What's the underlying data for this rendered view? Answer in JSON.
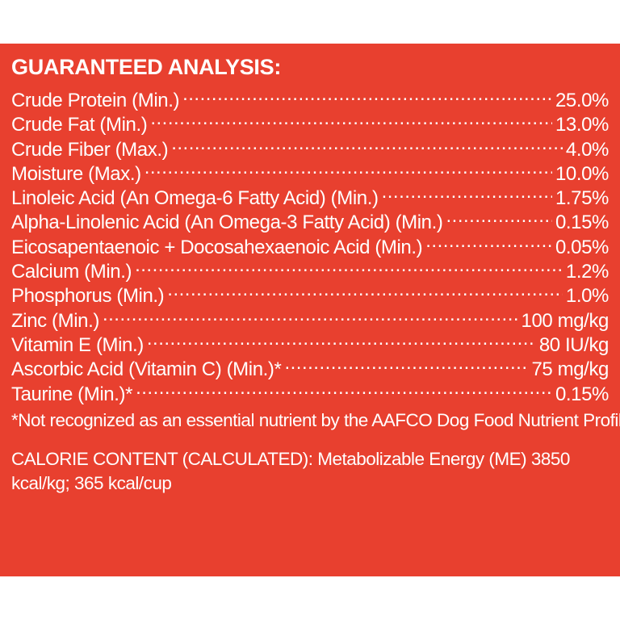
{
  "panel": {
    "heading": "GUARANTEED ANALYSIS:",
    "rows": [
      {
        "label": "Crude Protein (Min.)",
        "value": "25.0%"
      },
      {
        "label": "Crude Fat (Min.)",
        "value": "13.0%"
      },
      {
        "label": "Crude Fiber (Max.)",
        "value": "4.0%"
      },
      {
        "label": "Moisture (Max.)",
        "value": "10.0%"
      },
      {
        "label": "Linoleic Acid (An Omega-6 Fatty Acid) (Min.)",
        "value": "1.75%"
      },
      {
        "label": "Alpha-Linolenic Acid (An Omega-3 Fatty Acid) (Min.)",
        "value": "0.15%"
      },
      {
        "label": "Eicosapentaenoic + Docosahexaenoic Acid (Min.)",
        "value": "0.05%"
      },
      {
        "label": "Calcium (Min.)",
        "value": "1.2%"
      },
      {
        "label": "Phosphorus (Min.)",
        "value": "1.0%"
      },
      {
        "label": "Zinc (Min.)",
        "value": "100 mg/kg"
      },
      {
        "label": "Vitamin E (Min.)",
        "value": "80 IU/kg"
      },
      {
        "label": "Ascorbic Acid (Vitamin C) (Min.)*",
        "value": "75 mg/kg"
      },
      {
        "label": "Taurine (Min.)*",
        "value": "0.15%"
      }
    ],
    "footnote": "*Not recognized as an essential nutrient by the AAFCO Dog Food Nutrient Profiles.",
    "calorie_content": "CALORIE CONTENT (CALCULATED): Metabolizable Energy (ME) 3850 kcal/kg; 365 kcal/cup"
  },
  "colors": {
    "background": "#e8402f",
    "text": "#ffffff"
  }
}
